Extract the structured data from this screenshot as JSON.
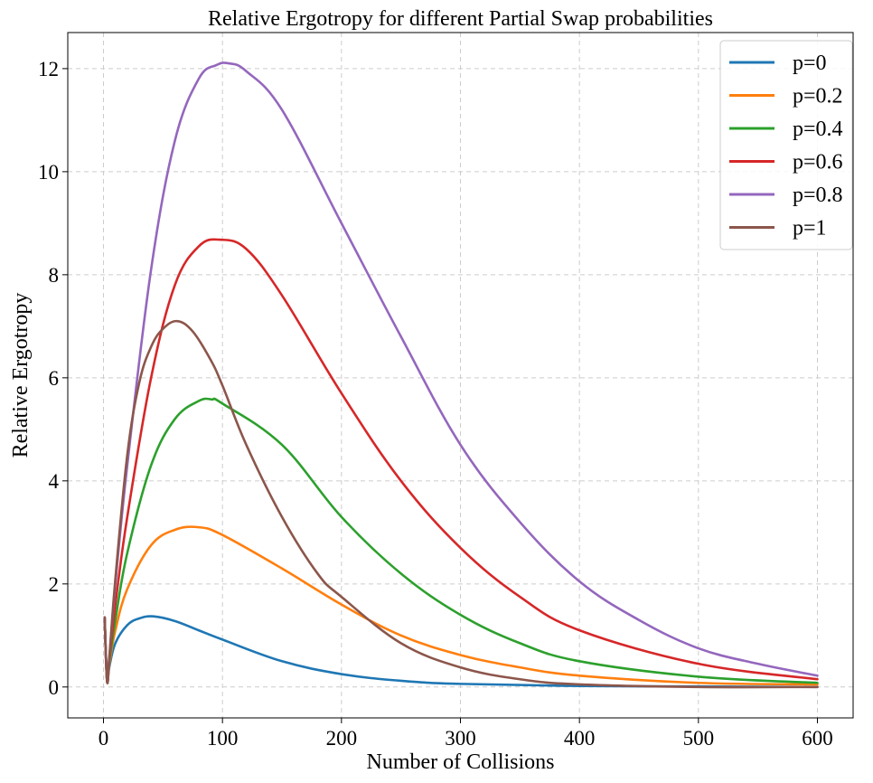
{
  "chart_data": {
    "type": "line",
    "title": "Relative Ergotropy for different Partial Swap probabilities",
    "xlabel": "Number of Collisions",
    "ylabel": "Relative Ergotropy",
    "xlim": [
      -30,
      630
    ],
    "ylim": [
      -0.6,
      12.7
    ],
    "xticks": [
      0,
      100,
      200,
      300,
      400,
      500,
      600
    ],
    "yticks": [
      0,
      2,
      4,
      6,
      8,
      10,
      12
    ],
    "grid": true,
    "legend_position": "top-right",
    "series": [
      {
        "name": "p=0",
        "color": "#1f77b4",
        "x": [
          1,
          3,
          5,
          10,
          20,
          30,
          42,
          60,
          80,
          100,
          150,
          200,
          250,
          300,
          400,
          500,
          600
        ],
        "y": [
          1.35,
          0.12,
          0.4,
          0.85,
          1.2,
          1.33,
          1.37,
          1.28,
          1.1,
          0.92,
          0.5,
          0.25,
          0.12,
          0.06,
          0.02,
          0.01,
          0.0
        ]
      },
      {
        "name": "p=0.2",
        "color": "#ff7f0e",
        "x": [
          1,
          3,
          5,
          10,
          20,
          40,
          60,
          80,
          100,
          150,
          200,
          250,
          300,
          350,
          400,
          500,
          600
        ],
        "y": [
          1.35,
          0.12,
          0.45,
          1.1,
          1.9,
          2.75,
          3.05,
          3.1,
          2.95,
          2.3,
          1.6,
          1.0,
          0.62,
          0.38,
          0.22,
          0.08,
          0.05
        ]
      },
      {
        "name": "p=0.4",
        "color": "#2ca02c",
        "x": [
          1,
          3,
          5,
          10,
          20,
          40,
          60,
          80,
          91,
          100,
          150,
          200,
          250,
          300,
          350,
          400,
          500,
          600
        ],
        "y": [
          1.35,
          0.12,
          0.5,
          1.3,
          2.6,
          4.3,
          5.2,
          5.55,
          5.58,
          5.5,
          4.7,
          3.3,
          2.2,
          1.4,
          0.85,
          0.5,
          0.2,
          0.08
        ]
      },
      {
        "name": "p=0.6",
        "color": "#d62728",
        "x": [
          1,
          3,
          5,
          10,
          20,
          40,
          60,
          80,
          98,
          120,
          150,
          200,
          250,
          300,
          350,
          400,
          500,
          600
        ],
        "y": [
          1.35,
          0.12,
          0.55,
          1.6,
          3.3,
          6.0,
          7.8,
          8.55,
          8.68,
          8.5,
          7.6,
          5.7,
          4.0,
          2.7,
          1.75,
          1.1,
          0.45,
          0.15
        ]
      },
      {
        "name": "p=0.8",
        "color": "#9467bd",
        "x": [
          1,
          3,
          5,
          10,
          20,
          40,
          60,
          80,
          95,
          106,
          120,
          150,
          200,
          250,
          300,
          350,
          400,
          450,
          500,
          550,
          600
        ],
        "y": [
          1.35,
          0.12,
          0.6,
          2.0,
          4.3,
          8.1,
          10.6,
          11.8,
          12.07,
          12.1,
          11.95,
          11.2,
          9.0,
          6.8,
          4.7,
          3.2,
          2.05,
          1.3,
          0.75,
          0.45,
          0.22
        ]
      },
      {
        "name": "p=1",
        "color": "#8c564b",
        "x": [
          1,
          3,
          5,
          10,
          20,
          30,
          40,
          50,
          62,
          75,
          90,
          100,
          120,
          150,
          180,
          200,
          250,
          300,
          350,
          400,
          500,
          600
        ],
        "y": [
          1.35,
          0.12,
          0.6,
          2.1,
          4.5,
          5.9,
          6.6,
          6.95,
          7.1,
          6.9,
          6.35,
          5.85,
          4.7,
          3.3,
          2.2,
          1.75,
          0.85,
          0.38,
          0.15,
          0.05,
          0.0,
          0.0
        ]
      }
    ]
  }
}
